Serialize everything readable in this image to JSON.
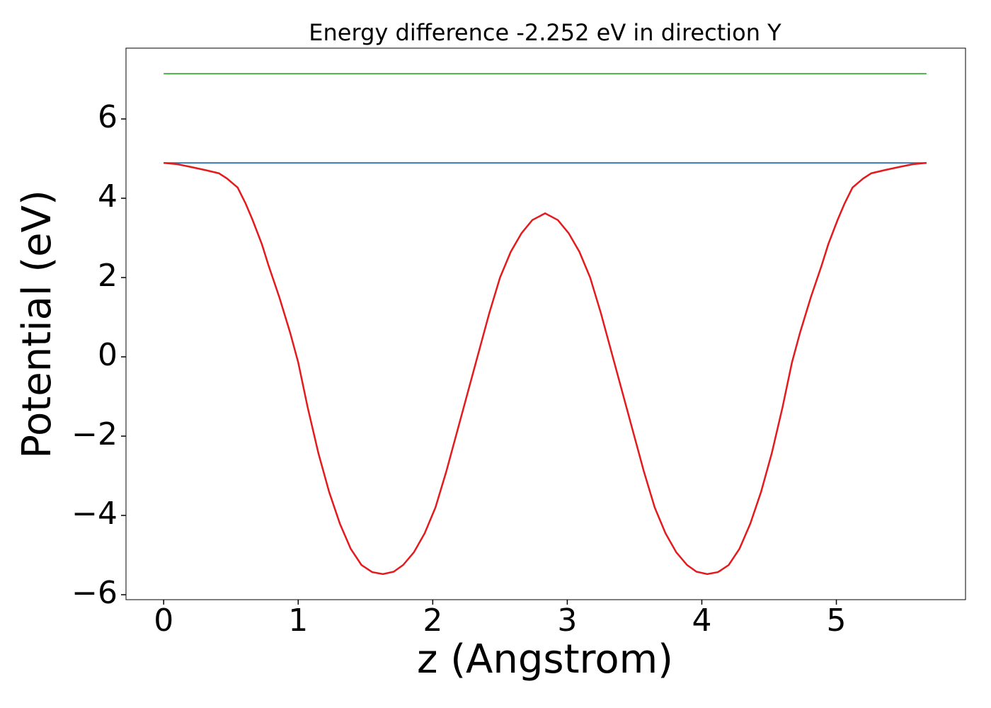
{
  "chart_data": {
    "type": "line",
    "title": "Energy difference -2.252 eV in direction Y",
    "xlabel": "z (Angstrom)",
    "ylabel": "Potential (eV)",
    "xlim": [
      -0.28,
      5.96
    ],
    "ylim": [
      -6.125,
      7.786
    ],
    "xticks": [
      0,
      1,
      2,
      3,
      4,
      5
    ],
    "yticks": [
      {
        "value": -6,
        "label": "−6"
      },
      {
        "value": -4,
        "label": "−4"
      },
      {
        "value": -2,
        "label": "−2"
      },
      0,
      2,
      4,
      6
    ],
    "series": [
      {
        "color": "#4daf4a",
        "x": [
          0,
          5.67
        ],
        "values": [
          7.14,
          7.14
        ]
      },
      {
        "color": "#3a78b4",
        "x": [
          0,
          5.67
        ],
        "values": [
          4.89,
          4.89
        ]
      },
      {
        "color": "#e41a1c",
        "x": [
          0,
          0.1,
          0.2,
          0.31,
          0.41,
          0.47,
          0.55,
          0.61,
          0.66,
          0.73,
          0.78,
          0.86,
          0.94,
          1.0,
          1.07,
          1.15,
          1.23,
          1.31,
          1.39,
          1.47,
          1.55,
          1.63,
          1.71,
          1.78,
          1.86,
          1.94,
          2.02,
          2.1,
          2.18,
          2.26,
          2.34,
          2.42,
          2.5,
          2.58,
          2.66,
          2.74,
          2.835,
          2.93,
          3.01,
          3.09,
          3.17,
          3.25,
          3.33,
          3.41,
          3.49,
          3.57,
          3.65,
          3.73,
          3.81,
          3.89,
          3.96,
          4.04,
          4.12,
          4.2,
          4.28,
          4.36,
          4.44,
          4.52,
          4.6,
          4.67,
          4.73,
          4.81,
          4.89,
          4.94,
          5.01,
          5.06,
          5.12,
          5.2,
          5.26,
          5.36,
          5.47,
          5.57,
          5.67
        ],
        "values": [
          4.89,
          4.86,
          4.79,
          4.71,
          4.63,
          4.5,
          4.27,
          3.86,
          3.46,
          2.84,
          2.3,
          1.5,
          0.61,
          -0.14,
          -1.27,
          -2.43,
          -3.41,
          -4.21,
          -4.84,
          -5.25,
          -5.43,
          -5.48,
          -5.42,
          -5.25,
          -4.93,
          -4.45,
          -3.8,
          -2.9,
          -1.9,
          -0.9,
          0.1,
          1.1,
          2.0,
          2.65,
          3.12,
          3.45,
          3.62,
          3.45,
          3.12,
          2.65,
          2.0,
          1.1,
          0.1,
          -0.9,
          -1.9,
          -2.9,
          -3.8,
          -4.45,
          -4.93,
          -5.25,
          -5.42,
          -5.48,
          -5.43,
          -5.25,
          -4.84,
          -4.21,
          -3.41,
          -2.43,
          -1.27,
          -0.14,
          0.61,
          1.5,
          2.3,
          2.84,
          3.46,
          3.86,
          4.27,
          4.5,
          4.63,
          4.71,
          4.79,
          4.86,
          4.89
        ]
      }
    ]
  }
}
